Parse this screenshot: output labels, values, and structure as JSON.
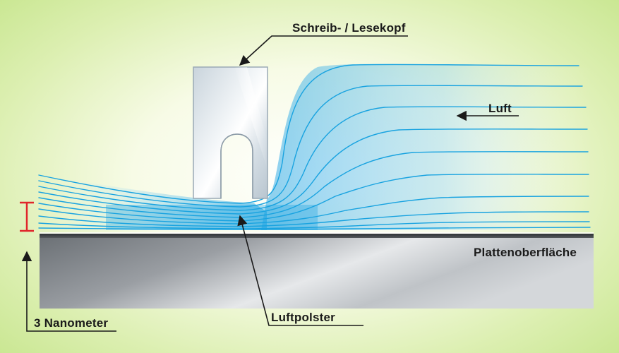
{
  "labels": {
    "head": "Schreib- / Lesekopf",
    "air": "Luft",
    "platter_surface": "Plattenoberfläche",
    "air_cushion": "Luftpolster",
    "gap_size": "3 Nanometer"
  },
  "colors": {
    "air_flow": "#19a3e0",
    "gap_marker": "#e0262b",
    "platter_dark": "#5c6166",
    "platter_light": "#dfe2e5",
    "background_green": "#c3e487"
  }
}
